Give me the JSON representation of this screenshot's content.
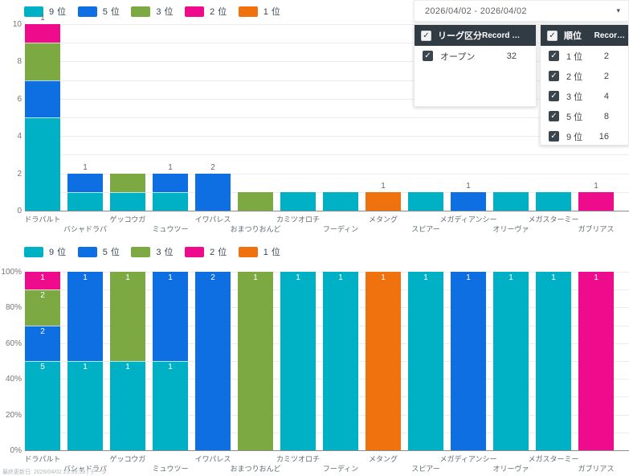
{
  "icons": {
    "check": "✓",
    "caret": "▾"
  },
  "filter_popover": {
    "date_range_value": "2026/04/02 - 2026/04/02",
    "league_table": {
      "header_title": "リーグ区分",
      "header_count_label": "Record …",
      "rows": [
        {
          "label": "オープン",
          "count": "32",
          "checked": true
        }
      ]
    },
    "rank_table": {
      "header_title": "順位",
      "header_count_label": "Recor…",
      "rows": [
        {
          "label": "1 位",
          "count": "2",
          "checked": true
        },
        {
          "label": "2 位",
          "count": "2",
          "checked": true
        },
        {
          "label": "3 位",
          "count": "4",
          "checked": true
        },
        {
          "label": "5 位",
          "count": "8",
          "checked": true
        },
        {
          "label": "9 位",
          "count": "16",
          "checked": true
        }
      ]
    }
  },
  "footnote": "最終更新日: 2026/04/02 23:59:59 | データ",
  "chart_data": [
    {
      "type": "bar",
      "stacked": true,
      "mode": "count",
      "title": "",
      "xlabel": "",
      "ylabel": "",
      "ylim": [
        0,
        10
      ],
      "yticks": [
        0,
        2,
        4,
        6,
        8,
        10
      ],
      "grid_step": 1,
      "legend_position": "top-left",
      "legend": [
        "9 位",
        "5 位",
        "3 位",
        "2 位",
        "1 位"
      ],
      "categories": [
        "ドラパルト",
        "バシャドラパ",
        "ゲッコウガ",
        "ミュウツー",
        "イワパレス",
        "おまつりおんど",
        "カミツオロチ",
        "フーディン",
        "メタング",
        "スピアー",
        "メガディアンシー",
        "オリーヴァ",
        "メガスターミー",
        "ガブリアス"
      ],
      "series": [
        {
          "name": "9 位",
          "color": "#00b1c5",
          "values": [
            5,
            1,
            1,
            1,
            0,
            0,
            1,
            1,
            0,
            1,
            0,
            1,
            1,
            0
          ]
        },
        {
          "name": "5 位",
          "color": "#0d6fe2",
          "values": [
            2,
            1,
            0,
            1,
            2,
            0,
            0,
            0,
            0,
            0,
            1,
            0,
            0,
            0
          ]
        },
        {
          "name": "3 位",
          "color": "#7ca942",
          "values": [
            2,
            0,
            1,
            0,
            0,
            1,
            0,
            0,
            0,
            0,
            0,
            0,
            0,
            0
          ]
        },
        {
          "name": "2 位",
          "color": "#ee0b8c",
          "values": [
            1,
            0,
            0,
            0,
            0,
            0,
            0,
            0,
            0,
            0,
            0,
            0,
            0,
            1
          ]
        },
        {
          "name": "1 位",
          "color": "#f0720f",
          "values": [
            0,
            0,
            0,
            0,
            0,
            0,
            0,
            0,
            1,
            0,
            0,
            0,
            0,
            0
          ]
        }
      ],
      "top_label_visible_for": [
        "5 位",
        "2 位",
        "1 位"
      ]
    },
    {
      "type": "bar",
      "stacked": true,
      "mode": "percent",
      "title": "",
      "xlabel": "",
      "ylabel": "",
      "ylim": [
        0,
        100
      ],
      "yticks": [
        "0%",
        "20%",
        "40%",
        "60%",
        "80%",
        "100%"
      ],
      "grid_step": 10,
      "legend_position": "top-left",
      "legend": [
        "9 位",
        "5 位",
        "3 位",
        "2 位",
        "1 位"
      ],
      "categories": [
        "ドラパルト",
        "バシャドラパ",
        "ゲッコウガ",
        "ミュウツー",
        "イワパレス",
        "おまつりおんど",
        "カミツオロチ",
        "フーディン",
        "メタング",
        "スピアー",
        "メガディアンシー",
        "オリーヴァ",
        "メガスターミー",
        "ガブリアス"
      ],
      "series": [
        {
          "name": "9 位",
          "color": "#00b1c5",
          "values": [
            5,
            1,
            1,
            1,
            0,
            0,
            1,
            1,
            0,
            1,
            0,
            1,
            1,
            0
          ]
        },
        {
          "name": "5 位",
          "color": "#0d6fe2",
          "values": [
            2,
            1,
            0,
            1,
            2,
            0,
            0,
            0,
            0,
            0,
            1,
            0,
            0,
            0
          ]
        },
        {
          "name": "3 位",
          "color": "#7ca942",
          "values": [
            2,
            0,
            1,
            0,
            0,
            1,
            0,
            0,
            0,
            0,
            0,
            0,
            0,
            0
          ]
        },
        {
          "name": "2 位",
          "color": "#ee0b8c",
          "values": [
            1,
            0,
            0,
            0,
            0,
            0,
            0,
            0,
            0,
            0,
            0,
            0,
            0,
            1
          ]
        },
        {
          "name": "1 位",
          "color": "#f0720f",
          "values": [
            0,
            0,
            0,
            0,
            0,
            0,
            0,
            0,
            1,
            0,
            0,
            0,
            0,
            0
          ]
        }
      ]
    }
  ]
}
